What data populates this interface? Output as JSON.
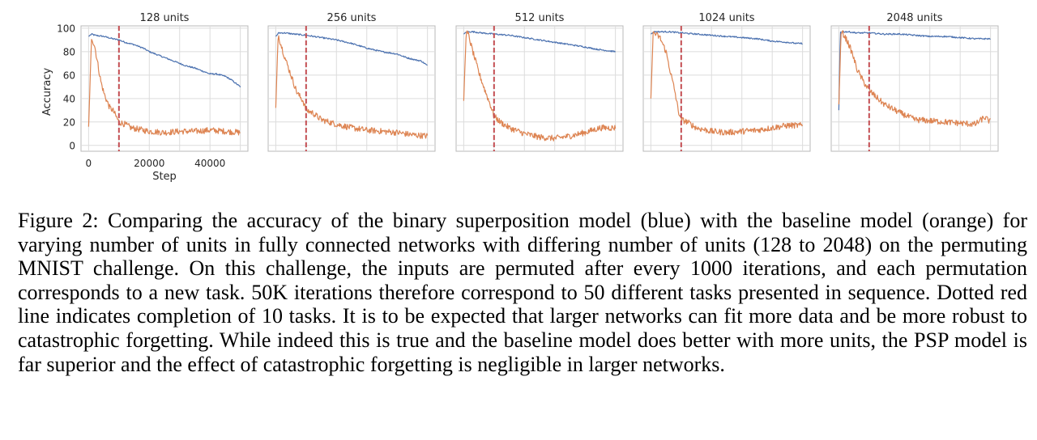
{
  "figure": {
    "colors": {
      "psp": "#4c72b0",
      "baseline": "#dd8452",
      "marker": "#c44e52",
      "grid": "#dcdcdc",
      "frame": "#b8b8b8"
    },
    "chart_data": [
      {
        "type": "line",
        "title": "128 units",
        "xlabel": "Step",
        "ylabel": "Accuracy",
        "xlim": [
          -2500,
          52500
        ],
        "ylim": [
          -5,
          102
        ],
        "xticks": [
          0,
          20000,
          40000
        ],
        "xtick_labels": [
          "0",
          "20000",
          "40000"
        ],
        "yticks": [
          0,
          20,
          40,
          60,
          80,
          100
        ],
        "ytick_labels": [
          "0",
          "20",
          "40",
          "60",
          "80",
          "100"
        ],
        "grid": true,
        "vline_x": 10000,
        "series": [
          {
            "color": "psp",
            "x": [
              0,
              1000,
              2000,
              5000,
              8000,
              10000,
              12000,
              15000,
              18000,
              20000,
              22000,
              25000,
              28000,
              30000,
              32000,
              35000,
              38000,
              40000,
              42000,
              45000,
              47000,
              49000,
              50000
            ],
            "y": [
              93,
              95,
              94,
              93,
              91,
              90,
              88,
              86,
              83,
              80,
              78,
              75,
              72,
              70,
              68,
              66,
              63,
              61,
              61,
              59,
              56,
              52,
              50
            ]
          },
          {
            "color": "baseline",
            "x": [
              0,
              1000,
              2000,
              3000,
              4000,
              5000,
              6000,
              7000,
              8000,
              9000,
              10000,
              12000,
              14000,
              16000,
              18000,
              20000,
              25000,
              30000,
              35000,
              40000,
              45000,
              50000
            ],
            "y": [
              16,
              92,
              85,
              70,
              55,
              45,
              38,
              32,
              30,
              25,
              20,
              18,
              15,
              14,
              13,
              12,
              11,
              12,
              12,
              13,
              12,
              11
            ]
          }
        ]
      },
      {
        "type": "line",
        "title": "256 units",
        "xlim": [
          -2500,
          52500
        ],
        "ylim": [
          -5,
          102
        ],
        "grid": true,
        "vline_x": 10000,
        "series": [
          {
            "color": "psp",
            "x": [
              0,
              1000,
              3000,
              6000,
              10000,
              15000,
              20000,
              25000,
              30000,
              35000,
              40000,
              43000,
              46000,
              48000,
              50000
            ],
            "y": [
              93,
              96,
              96,
              95,
              94,
              92,
              90,
              87,
              83,
              80,
              78,
              75,
              73,
              72,
              68
            ]
          },
          {
            "color": "baseline",
            "x": [
              0,
              800,
              1500,
              3000,
              5000,
              7000,
              9000,
              10000,
              12000,
              15000,
              20000,
              25000,
              30000,
              35000,
              40000,
              45000,
              50000
            ],
            "y": [
              32,
              95,
              88,
              75,
              60,
              45,
              38,
              30,
              28,
              22,
              18,
              15,
              13,
              12,
              11,
              9,
              8
            ]
          }
        ]
      },
      {
        "type": "line",
        "title": "512 units",
        "xlim": [
          -2500,
          52500
        ],
        "ylim": [
          -5,
          102
        ],
        "grid": true,
        "vline_x": 10000,
        "series": [
          {
            "color": "psp",
            "x": [
              0,
              1000,
              3000,
              6000,
              10000,
              15000,
              20000,
              25000,
              30000,
              35000,
              40000,
              44000,
              47000,
              50000
            ],
            "y": [
              95,
              97,
              97,
              96,
              95,
              94,
              92,
              90,
              88,
              86,
              84,
              82,
              81,
              80
            ]
          },
          {
            "color": "baseline",
            "x": [
              0,
              800,
              1500,
              3000,
              5000,
              7000,
              9000,
              10000,
              12000,
              15000,
              20000,
              25000,
              30000,
              35000,
              40000,
              45000,
              50000
            ],
            "y": [
              38,
              96,
              95,
              80,
              62,
              47,
              33,
              25,
              20,
              15,
              10,
              7,
              6,
              8,
              11,
              15,
              15
            ]
          }
        ]
      },
      {
        "type": "line",
        "title": "1024 units",
        "xlim": [
          -2500,
          52500
        ],
        "ylim": [
          -5,
          102
        ],
        "grid": true,
        "vline_x": 10000,
        "series": [
          {
            "color": "psp",
            "x": [
              0,
              1000,
              3000,
              6000,
              10000,
              15000,
              20000,
              25000,
              30000,
              35000,
              40000,
              45000,
              48000,
              50000
            ],
            "y": [
              95,
              97,
              97,
              97,
              96,
              95,
              94,
              93,
              92,
              91,
              89,
              88,
              87,
              87
            ]
          },
          {
            "color": "baseline",
            "x": [
              0,
              800,
              1500,
              3000,
              5000,
              6500,
              8000,
              9000,
              10000,
              12000,
              15000,
              20000,
              25000,
              30000,
              35000,
              40000,
              45000,
              50000
            ],
            "y": [
              40,
              97,
              95,
              92,
              80,
              62,
              45,
              30,
              22,
              20,
              15,
              12,
              11,
              12,
              13,
              15,
              17,
              17
            ]
          }
        ]
      },
      {
        "type": "line",
        "title": "2048 units",
        "xlim": [
          -2500,
          52500
        ],
        "ylim": [
          -5,
          102
        ],
        "grid": true,
        "vline_x": 10000,
        "series": [
          {
            "color": "psp",
            "x": [
              0,
              500,
              1000,
              3000,
              6000,
              10000,
              15000,
              20000,
              25000,
              30000,
              35000,
              40000,
              45000,
              50000
            ],
            "y": [
              30,
              97,
              97,
              97,
              96,
              96,
              95,
              95,
              94,
              93,
              93,
              92,
              91,
              91
            ]
          },
          {
            "color": "baseline",
            "x": [
              0,
              800,
              1500,
              3000,
              4500,
              6000,
              8000,
              10000,
              12000,
              15000,
              20000,
              25000,
              30000,
              35000,
              40000,
              45000,
              48000,
              50000
            ],
            "y": [
              35,
              97,
              95,
              88,
              78,
              65,
              55,
              47,
              42,
              35,
              28,
              22,
              21,
              20,
              19,
              18,
              24,
              20
            ]
          }
        ]
      }
    ]
  },
  "caption": "Figure 2: Comparing the accuracy of the binary superposition model (blue) with the baseline model (orange) for varying number of units in fully connected networks with differing number of units (128 to 2048) on the permuting MNIST challenge. On this challenge, the inputs are permuted after every 1000 iterations, and each permutation corresponds to a new task. 50K iterations therefore correspond to 50 different tasks presented in sequence. Dotted red line indicates completion of 10 tasks. It is to be expected that larger networks can fit more data and be more robust to catastrophic forgetting. While indeed this is true and the baseline model does better with more units, the PSP model is far superior and the effect of catastrophic forgetting is negligible in larger networks."
}
